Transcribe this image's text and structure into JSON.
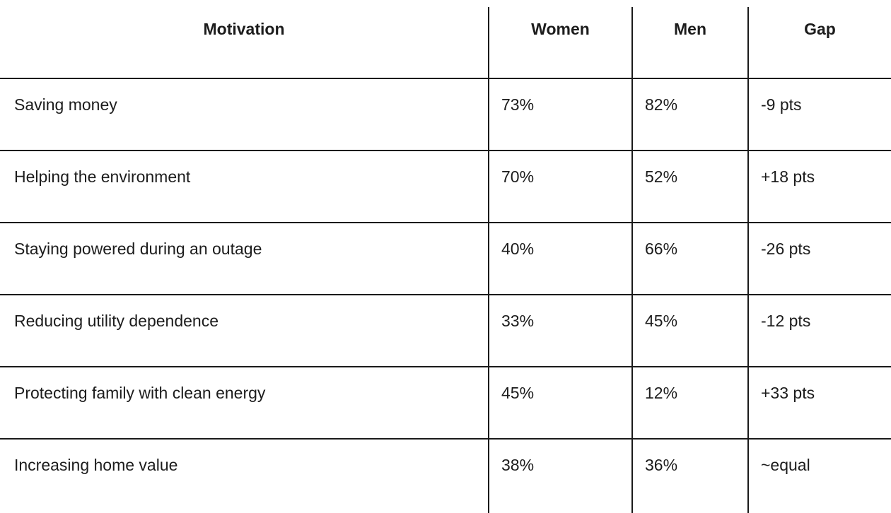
{
  "chart_data": {
    "type": "table",
    "title": "",
    "columns": [
      "Motivation",
      "Women",
      "Men",
      "Gap"
    ],
    "rows": [
      [
        "Saving money",
        "73%",
        "82%",
        "-9 pts"
      ],
      [
        "Helping the environment",
        "70%",
        "52%",
        "+18 pts"
      ],
      [
        "Staying powered during an outage",
        "40%",
        "66%",
        "-26 pts"
      ],
      [
        "Reducing utility dependence",
        "33%",
        "45%",
        "-12 pts"
      ],
      [
        "Protecting family with clean energy",
        "45%",
        "12%",
        "+33 pts"
      ],
      [
        "Increasing home value",
        "38%",
        "36%",
        "~equal"
      ]
    ],
    "layout": {
      "grid": "horizontal-and-vertical-rules",
      "outer_border": false,
      "header_bold": true,
      "value_alignment": "left",
      "header_alignment": "center"
    },
    "colors": {
      "border": "#1a1a1a",
      "text": "#1c1c1c",
      "background": "#ffffff"
    }
  }
}
